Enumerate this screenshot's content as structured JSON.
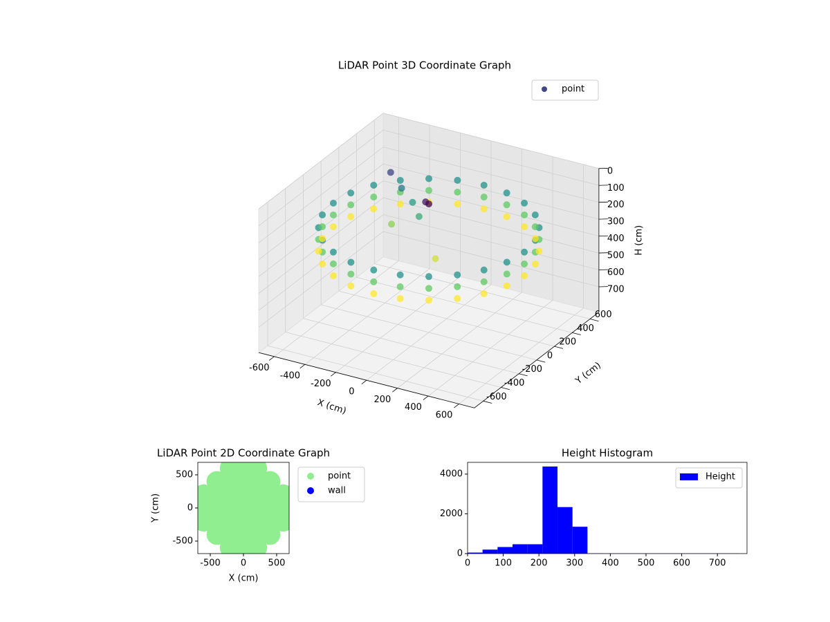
{
  "chart_data": [
    {
      "type": "scatter3d",
      "title": "LiDAR Point 3D Coordinate Graph",
      "xlabel": "X (cm)",
      "ylabel": "Y (cm)",
      "zlabel": "H (cm)",
      "series": [
        {
          "name": "point",
          "colormap": "viridis",
          "legend_color": "#404788",
          "x": [
            620,
            599,
            537,
            438,
            310,
            160,
            0,
            -160,
            -310,
            -438,
            -537,
            -599,
            -620,
            -599,
            -537,
            -438,
            -310,
            -160,
            0,
            160,
            310,
            438,
            537,
            599,
            620,
            599,
            537,
            438,
            310,
            160,
            0,
            -160,
            -310,
            -438,
            -537,
            -599,
            -620,
            -599,
            -537,
            -438,
            -310,
            -160,
            0,
            160,
            310,
            438,
            537,
            599,
            620,
            599,
            537,
            438,
            310,
            160,
            0,
            -160,
            -310,
            -438,
            -537,
            -599,
            -620,
            -599,
            -537,
            -438,
            -310,
            -160,
            0,
            160,
            310,
            438,
            537,
            599,
            -450,
            -350,
            -250,
            -150,
            -50,
            0,
            -300,
            100
          ],
          "y": [
            0,
            160,
            310,
            438,
            537,
            599,
            620,
            599,
            537,
            438,
            310,
            160,
            0,
            -160,
            -310,
            -438,
            -537,
            -599,
            -620,
            -599,
            -537,
            -438,
            -310,
            -160,
            0,
            160,
            310,
            438,
            537,
            599,
            620,
            599,
            537,
            438,
            310,
            160,
            0,
            -160,
            -310,
            -438,
            -537,
            -599,
            -620,
            -599,
            -537,
            -438,
            -310,
            -160,
            0,
            160,
            310,
            438,
            537,
            599,
            620,
            599,
            537,
            438,
            310,
            160,
            0,
            -160,
            -310,
            -438,
            -537,
            -599,
            -620,
            -599,
            -537,
            -438,
            -310,
            -160,
            350,
            300,
            250,
            150,
            50,
            0,
            100,
            -100
          ],
          "z": [
            230,
            230,
            230,
            230,
            230,
            230,
            230,
            230,
            230,
            230,
            230,
            230,
            230,
            230,
            230,
            230,
            230,
            230,
            230,
            230,
            230,
            230,
            230,
            230,
            300,
            300,
            300,
            300,
            300,
            300,
            300,
            300,
            300,
            300,
            300,
            300,
            300,
            300,
            300,
            300,
            300,
            300,
            300,
            300,
            300,
            300,
            300,
            300,
            370,
            370,
            370,
            370,
            370,
            370,
            370,
            370,
            370,
            370,
            370,
            370,
            370,
            370,
            370,
            370,
            370,
            370,
            370,
            370,
            370,
            370,
            370,
            370,
            150,
            200,
            240,
            260,
            110,
            90,
            320,
            350
          ]
        }
      ],
      "xlim": [
        -700,
        700
      ],
      "ylim": [
        -700,
        700
      ],
      "zlim": [
        0,
        850
      ],
      "z_inverted": true,
      "xticks": [
        -600,
        -400,
        -200,
        0,
        200,
        400,
        600
      ],
      "yticks": [
        -600,
        -400,
        -200,
        0,
        200,
        400,
        600
      ],
      "zticks": [
        0,
        100,
        200,
        300,
        400,
        500,
        600,
        700
      ],
      "grid": true,
      "legend": "upper right"
    },
    {
      "type": "scatter",
      "title": "LiDAR Point 2D Coordinate Graph",
      "xlabel": "X (cm)",
      "ylabel": "Y (cm)",
      "series": [
        {
          "name": "point",
          "color": "#90ee90",
          "x": [
            -200,
            0,
            200,
            -400,
            -200,
            0,
            200,
            400,
            -600,
            -400,
            -200,
            0,
            200,
            400,
            600,
            -600,
            -400,
            -200,
            0,
            200,
            400,
            600,
            -600,
            -400,
            -200,
            0,
            200,
            400,
            600,
            -400,
            -200,
            0,
            200,
            400,
            -200,
            0,
            200
          ],
          "y": [
            600,
            600,
            600,
            400,
            400,
            400,
            400,
            400,
            200,
            200,
            200,
            200,
            200,
            200,
            200,
            0,
            0,
            0,
            0,
            0,
            0,
            0,
            -200,
            -200,
            -200,
            -200,
            -200,
            -200,
            -200,
            -400,
            -400,
            -400,
            -400,
            -400,
            -600,
            -600,
            -600
          ]
        },
        {
          "name": "wall",
          "color": "#0000ff",
          "x": [],
          "y": []
        }
      ],
      "xlim": [
        -688,
        688
      ],
      "ylim": [
        -688,
        688
      ],
      "xticks": [
        -500,
        0,
        500
      ],
      "yticks": [
        -500,
        0,
        500
      ],
      "legend": "outside right"
    },
    {
      "type": "histogram",
      "title": "Height Histogram",
      "series": [
        {
          "name": "Height",
          "color": "#0000ff",
          "bins": [
            0,
            42,
            84,
            126,
            168,
            210,
            252,
            294,
            336,
            378,
            420,
            462,
            504,
            546,
            588,
            630,
            672,
            714,
            756
          ],
          "values": [
            50,
            200,
            330,
            470,
            470,
            4380,
            2340,
            1350,
            10,
            5,
            5,
            5,
            5,
            5,
            5,
            5,
            5,
            5
          ]
        }
      ],
      "xlim": [
        0,
        783
      ],
      "ylim": [
        0,
        4590
      ],
      "xticks": [
        0,
        100,
        200,
        300,
        400,
        500,
        600,
        700
      ],
      "yticks": [
        0,
        2000,
        4000
      ],
      "legend": "upper right"
    }
  ]
}
